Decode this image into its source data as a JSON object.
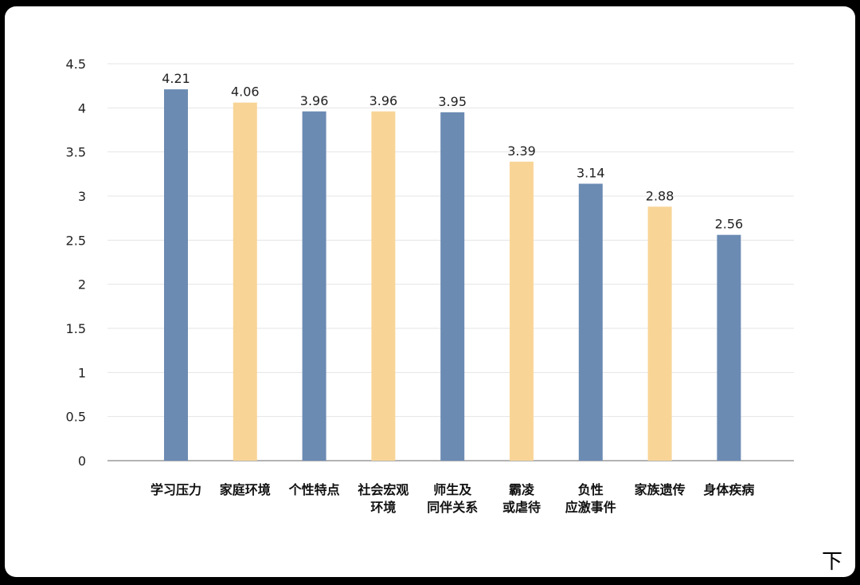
{
  "chart_data": {
    "type": "bar",
    "title": "",
    "xlabel": "",
    "ylabel": "",
    "ylim": [
      0,
      4.5
    ],
    "yticks": [
      "0",
      "0.5",
      "1",
      "1.5",
      "2",
      "2.5",
      "3",
      "3.5",
      "4",
      "4.5"
    ],
    "grid": true,
    "legend": "none",
    "categories": [
      [
        "学习压力"
      ],
      [
        "家庭环境"
      ],
      [
        "个性特点"
      ],
      [
        "社会宏观",
        "环境"
      ],
      [
        "师生及",
        "同伴关系"
      ],
      [
        "霸凌",
        "或虐待"
      ],
      [
        "负性",
        "应激事件"
      ],
      [
        "家族遗传"
      ],
      [
        "身体疾病"
      ]
    ],
    "values": [
      4.21,
      4.06,
      3.96,
      3.96,
      3.95,
      3.39,
      3.14,
      2.88,
      2.56
    ],
    "value_labels": [
      "4.21",
      "4.06",
      "3.96",
      "3.96",
      "3.95",
      "3.39",
      "3.14",
      "2.88",
      "2.56"
    ],
    "bar_colors": [
      "#6b8bb3",
      "#f8d597",
      "#6b8bb3",
      "#f8d597",
      "#6b8bb3",
      "#f8d597",
      "#6b8bb3",
      "#f8d597",
      "#6b8bb3"
    ]
  },
  "overlay": {
    "corner_glyph": "下"
  }
}
